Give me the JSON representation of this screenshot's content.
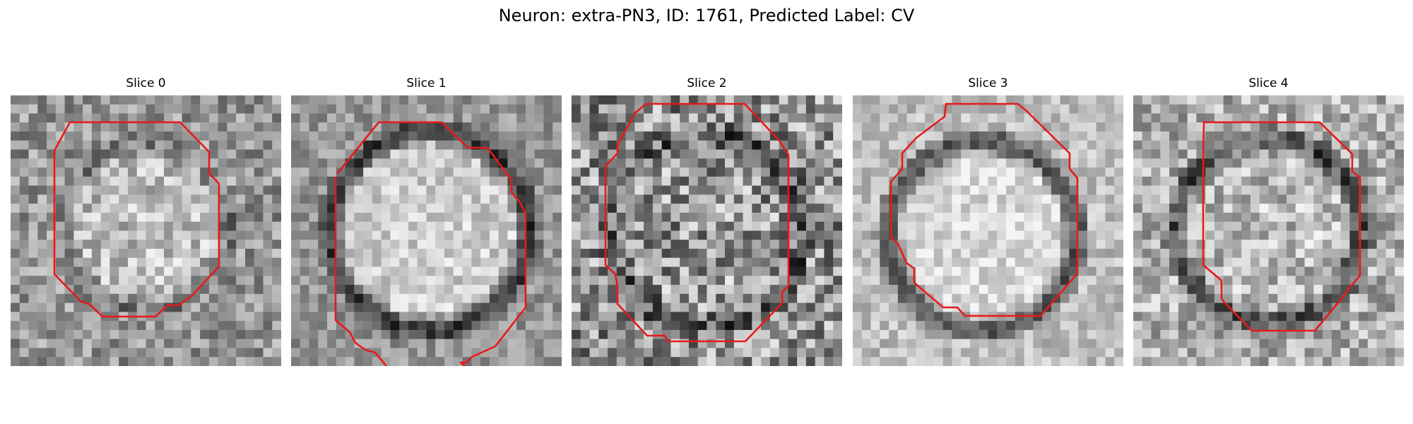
{
  "figure": {
    "title": "Neuron: extra-PN3, ID: 1761, Predicted Label: CV"
  },
  "panels": [
    {
      "title": "Slice 0"
    },
    {
      "title": "Slice 1"
    },
    {
      "title": "Slice 2"
    },
    {
      "title": "Slice 3"
    },
    {
      "title": "Slice 4"
    }
  ],
  "colors": {
    "contour": "#e8191a",
    "background": "#ffffff"
  }
}
